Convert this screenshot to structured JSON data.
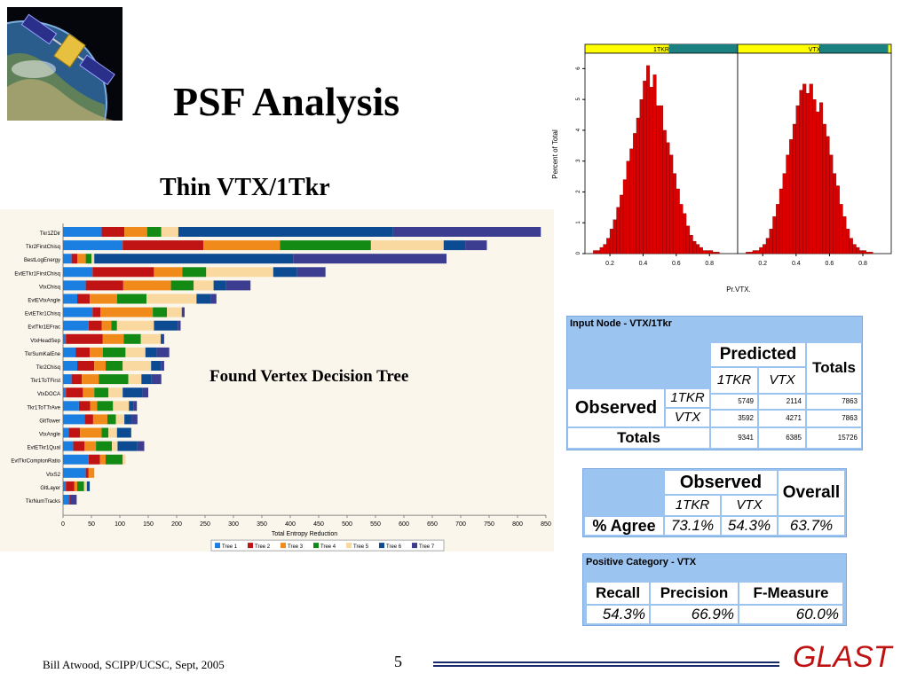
{
  "title": "PSF Analysis",
  "subtitle": "Thin VTX/1Tkr",
  "tree_caption": "Found Vertex Decision Tree",
  "footer": {
    "author": "Bill Atwood,  SCIPP/UCSC, Sept, 2005",
    "page": "5",
    "brand": "GLAST"
  },
  "chart_data": [
    {
      "type": "bar",
      "stacked": true,
      "orientation": "horizontal",
      "xlabel": "Total Entropy Reduction",
      "xlim": [
        0,
        850
      ],
      "xticks": [
        0,
        50,
        100,
        150,
        200,
        250,
        300,
        350,
        400,
        450,
        500,
        550,
        600,
        650,
        700,
        750,
        800,
        850
      ],
      "categories": [
        "Tkr1ZDir",
        "Tkr2FirstChisq",
        "BestLogEnergy",
        "EvtETkr1FirstChisq",
        "VtxChisq",
        "EvtEVtxAngle",
        "EvtETkr1Chisq",
        "EvtTkr1EFrac",
        "VtxHeadSep",
        "TkrSumKalEne",
        "Tkr2Chisq",
        "Tkr1ToTFirst",
        "VtxDOCA",
        "Tkr1ToTTrAve",
        "GltTower",
        "VtxAngle",
        "EvtETkr1Qual",
        "EvtTkrComptonRatio",
        "VtxS2",
        "GltLayer",
        "TkrNumTracks"
      ],
      "series": [
        {
          "name": "Tree 1",
          "color": "#1a7fe0",
          "values": [
            68,
            105,
            15,
            52,
            40,
            25,
            52,
            45,
            5,
            22,
            25,
            15,
            5,
            28,
            38,
            10,
            18,
            45,
            40,
            5,
            10
          ]
        },
        {
          "name": "Tree 2",
          "color": "#c01414",
          "values": [
            40,
            142,
            10,
            108,
            66,
            22,
            14,
            23,
            65,
            25,
            30,
            18,
            30,
            20,
            15,
            20,
            20,
            20,
            5,
            15,
            2
          ]
        },
        {
          "name": "Tree 3",
          "color": "#f08a1a",
          "values": [
            40,
            135,
            15,
            50,
            84,
            48,
            92,
            17,
            37,
            23,
            20,
            30,
            20,
            12,
            25,
            38,
            20,
            10,
            10,
            5,
            0
          ]
        },
        {
          "name": "Tree 4",
          "color": "#138a13",
          "values": [
            25,
            160,
            10,
            42,
            40,
            52,
            25,
            10,
            30,
            40,
            30,
            52,
            25,
            28,
            15,
            12,
            28,
            30,
            0,
            12,
            0
          ]
        },
        {
          "name": "Tree 5",
          "color": "#fad9a0",
          "values": [
            30,
            128,
            5,
            118,
            35,
            88,
            26,
            65,
            35,
            35,
            50,
            23,
            25,
            28,
            15,
            15,
            10,
            5,
            0,
            5,
            0
          ]
        },
        {
          "name": "Tree 6",
          "color": "#0c4a92",
          "values": [
            378,
            38,
            350,
            42,
            22,
            25,
            0,
            42,
            3,
            20,
            18,
            18,
            35,
            8,
            13,
            25,
            35,
            0,
            0,
            5,
            0
          ],
          "label": "Tree 6"
        },
        {
          "name": "Tree 7",
          "color": "#3c3c90",
          "values": [
            260,
            38,
            270,
            50,
            43,
            10,
            5,
            5,
            3,
            22,
            5,
            17,
            10,
            6,
            10,
            0,
            12,
            0,
            0,
            0,
            12
          ]
        }
      ]
    },
    {
      "type": "bar",
      "subtype": "histogram",
      "panels": [
        "1TKR",
        "VTX"
      ],
      "xlabel": "Pr.VTX.",
      "ylabel": "Percent of Total",
      "xlim": [
        0.05,
        0.97
      ],
      "ylim": [
        0,
        6.5
      ],
      "xticks": [
        0.2,
        0.4,
        0.6,
        0.8
      ],
      "yticks": [
        0,
        1,
        2,
        3,
        4,
        5,
        6
      ],
      "bins": [
        0.1,
        0.12,
        0.14,
        0.16,
        0.18,
        0.2,
        0.22,
        0.24,
        0.26,
        0.28,
        0.3,
        0.32,
        0.34,
        0.36,
        0.38,
        0.4,
        0.42,
        0.44,
        0.46,
        0.48,
        0.5,
        0.52,
        0.54,
        0.56,
        0.58,
        0.6,
        0.62,
        0.64,
        0.66,
        0.68,
        0.7,
        0.72,
        0.74,
        0.76,
        0.78,
        0.8,
        0.82,
        0.84
      ],
      "series": [
        {
          "name": "1TKR",
          "values": [
            0.1,
            0.1,
            0.2,
            0.3,
            0.5,
            0.8,
            1.1,
            1.5,
            1.9,
            2.4,
            3.0,
            3.4,
            3.9,
            4.4,
            5.0,
            5.6,
            6.1,
            5.4,
            5.8,
            4.8,
            4.8,
            4.0,
            3.6,
            3.2,
            2.6,
            2.1,
            1.6,
            1.3,
            0.9,
            0.6,
            0.4,
            0.3,
            0.2,
            0.1,
            0.1,
            0.1,
            0.05,
            0.05
          ]
        },
        {
          "name": "VTX",
          "values": [
            0.05,
            0.05,
            0.1,
            0.1,
            0.2,
            0.3,
            0.5,
            0.8,
            1.2,
            1.6,
            2.1,
            2.6,
            3.2,
            3.7,
            4.2,
            4.8,
            5.3,
            5.5,
            5.2,
            5.5,
            5.0,
            4.6,
            4.9,
            4.2,
            3.8,
            3.2,
            2.6,
            2.2,
            1.6,
            1.2,
            0.8,
            0.5,
            0.3,
            0.2,
            0.1,
            0.1,
            0.05,
            0.05
          ]
        }
      ]
    }
  ],
  "confusion_table": {
    "title": "Input Node - VTX/1Tkr",
    "predicted_label": "Predicted",
    "totals_label": "Totals",
    "observed_label": "Observed",
    "col_headers": [
      "1TKR",
      "VTX"
    ],
    "rows": [
      {
        "label": "1TKR",
        "values": [
          "5749",
          "2114",
          "7863"
        ]
      },
      {
        "label": "VTX",
        "values": [
          "3592",
          "4271",
          "7863"
        ]
      }
    ],
    "totals_row": {
      "label": "Totals",
      "values": [
        "9341",
        "6385",
        "15726"
      ]
    }
  },
  "agree_table": {
    "observed_label": "Observed",
    "overall_label": "Overall",
    "col_headers": [
      "1TKR",
      "VTX"
    ],
    "row_label": "% Agree",
    "values": [
      "73.1%",
      "54.3%",
      "63.7%"
    ]
  },
  "positive_table": {
    "title": "Positive Category - VTX",
    "headers": [
      "Recall",
      "Precision",
      "F-Measure"
    ],
    "values": [
      "54.3%",
      "66.9%",
      "60.0%"
    ]
  },
  "colors": {
    "panel_blue": "#9cc4f0",
    "hist_red": "#dd0000",
    "strip_yellow": "#ffff00",
    "strip_teal": "#1a8080",
    "brand_red": "#c01010"
  }
}
